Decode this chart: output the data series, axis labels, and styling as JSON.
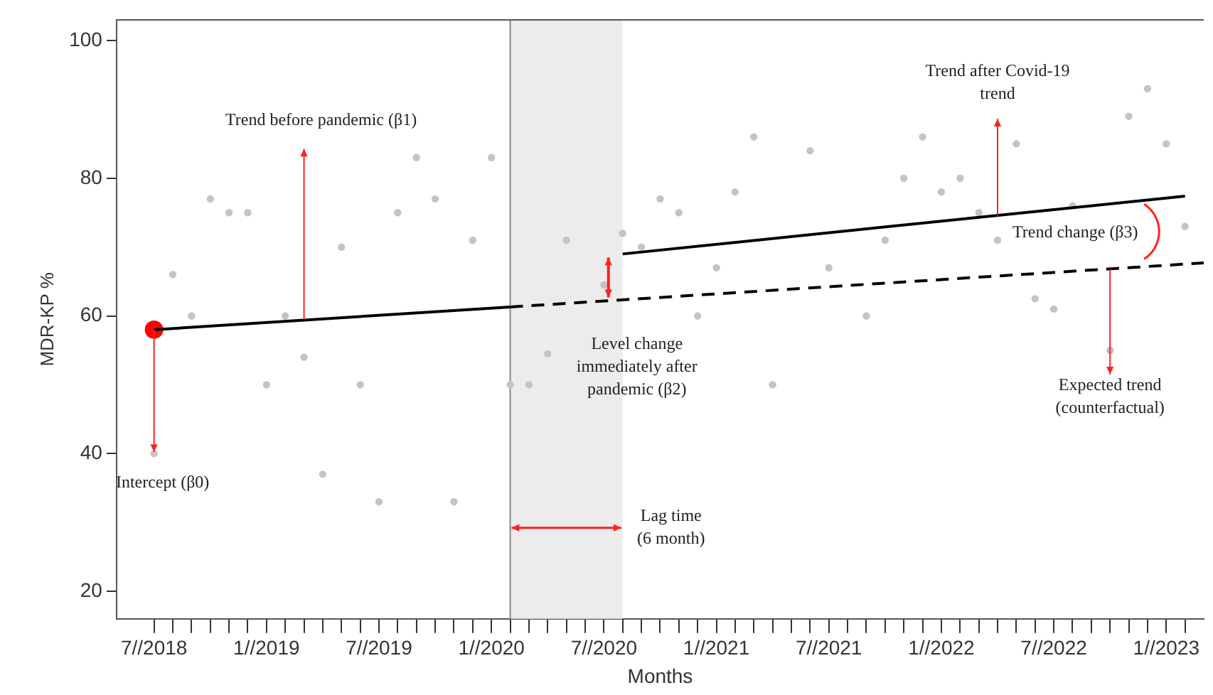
{
  "chart_data": {
    "type": "scatter",
    "xlabel": "Months",
    "ylabel": "MDR-KP %",
    "xlim": [
      "2018-05",
      "2023-03"
    ],
    "ylim": [
      16,
      103
    ],
    "yticks": [
      20,
      40,
      60,
      80,
      100
    ],
    "xticks": [
      {
        "value": "2018-07",
        "label": "7//2018"
      },
      {
        "value": "2018-08",
        "label": null
      },
      {
        "value": "2018-09",
        "label": null
      },
      {
        "value": "2018-10",
        "label": null
      },
      {
        "value": "2018-11",
        "label": null
      },
      {
        "value": "2018-12",
        "label": null
      },
      {
        "value": "2019-01",
        "label": "1//2019"
      },
      {
        "value": "2019-02",
        "label": null
      },
      {
        "value": "2019-03",
        "label": null
      },
      {
        "value": "2019-04",
        "label": null
      },
      {
        "value": "2019-05",
        "label": null
      },
      {
        "value": "2019-06",
        "label": null
      },
      {
        "value": "2019-07",
        "label": "7//2019"
      },
      {
        "value": "2019-08",
        "label": null
      },
      {
        "value": "2019-09",
        "label": null
      },
      {
        "value": "2019-10",
        "label": null
      },
      {
        "value": "2019-11",
        "label": null
      },
      {
        "value": "2019-12",
        "label": null
      },
      {
        "value": "2020-01",
        "label": "1//2020"
      },
      {
        "value": "2020-02",
        "label": null
      },
      {
        "value": "2020-03",
        "label": null
      },
      {
        "value": "2020-04",
        "label": null
      },
      {
        "value": "2020-05",
        "label": null
      },
      {
        "value": "2020-06",
        "label": null
      },
      {
        "value": "2020-07",
        "label": "7//2020"
      },
      {
        "value": "2020-08",
        "label": null
      },
      {
        "value": "2020-09",
        "label": null
      },
      {
        "value": "2020-10",
        "label": null
      },
      {
        "value": "2020-11",
        "label": null
      },
      {
        "value": "2020-12",
        "label": null
      },
      {
        "value": "2021-01",
        "label": "1//2021"
      },
      {
        "value": "2021-02",
        "label": null
      },
      {
        "value": "2021-03",
        "label": null
      },
      {
        "value": "2021-04",
        "label": null
      },
      {
        "value": "2021-05",
        "label": null
      },
      {
        "value": "2021-06",
        "label": null
      },
      {
        "value": "2021-07",
        "label": "7//2021"
      },
      {
        "value": "2021-08",
        "label": null
      },
      {
        "value": "2021-09",
        "label": null
      },
      {
        "value": "2021-10",
        "label": null
      },
      {
        "value": "2021-11",
        "label": null
      },
      {
        "value": "2021-12",
        "label": null
      },
      {
        "value": "2022-01",
        "label": "1//2022"
      },
      {
        "value": "2022-02",
        "label": null
      },
      {
        "value": "2022-03",
        "label": null
      },
      {
        "value": "2022-04",
        "label": null
      },
      {
        "value": "2022-05",
        "label": null
      },
      {
        "value": "2022-06",
        "label": null
      },
      {
        "value": "2022-07",
        "label": "7//2022"
      },
      {
        "value": "2022-08",
        "label": null
      },
      {
        "value": "2022-09",
        "label": null
      },
      {
        "value": "2022-10",
        "label": null
      },
      {
        "value": "2022-11",
        "label": null
      },
      {
        "value": "2022-12",
        "label": null
      },
      {
        "value": "2023-01",
        "label": "1//2023"
      },
      {
        "value": "2023-02",
        "label": null
      }
    ],
    "grid": false,
    "legend": false,
    "marker": "circle",
    "series": [
      {
        "color": "#c4c4c4",
        "x": [
          "2018-07",
          "2018-08",
          "2018-09",
          "2018-10",
          "2018-11",
          "2018-12",
          "2019-01",
          "2019-02",
          "2019-03",
          "2019-04",
          "2019-05",
          "2019-06",
          "2019-07",
          "2019-08",
          "2019-09",
          "2019-10",
          "2019-11",
          "2019-12",
          "2020-01",
          "2020-02",
          "2020-03",
          "2020-04",
          "2020-05",
          "2020-07",
          "2020-08",
          "2020-09",
          "2020-10",
          "2020-11",
          "2020-12",
          "2021-01",
          "2021-02",
          "2021-03",
          "2021-04",
          "2021-06",
          "2021-07",
          "2021-09",
          "2021-10",
          "2021-11",
          "2021-12",
          "2022-01",
          "2022-02",
          "2022-03",
          "2022-04",
          "2022-05",
          "2022-06",
          "2022-07",
          "2022-08",
          "2022-10",
          "2022-11",
          "2022-12",
          "2023-01",
          "2023-02"
        ],
        "values": [
          40,
          66,
          60,
          77,
          75,
          75,
          50,
          60,
          54,
          37,
          70,
          50,
          33,
          75,
          83,
          77,
          33,
          71,
          83,
          50,
          50,
          54.5,
          71,
          64.5,
          72,
          70,
          77,
          75,
          60,
          67,
          78,
          86,
          50,
          84,
          67,
          60,
          71,
          80,
          86,
          78,
          80,
          75,
          71,
          85,
          62.5,
          61,
          76,
          55,
          89,
          93,
          85,
          73
        ]
      },
      {
        "color": "#ff0000",
        "x": [
          "2018-07"
        ],
        "values": [
          58
        ]
      },
      {
        "type": "line",
        "color": "#000000",
        "line_style": "solid",
        "marker": "none",
        "x": [
          "2018-07",
          "2020-02"
        ],
        "values": [
          58,
          61.3
        ]
      },
      {
        "type": "line",
        "color": "#000000",
        "line_style": "dashed",
        "marker": "none",
        "x": [
          "2020-02",
          "2023-03"
        ],
        "values": [
          61.3,
          67.7
        ]
      },
      {
        "type": "line",
        "color": "#000000",
        "line_style": "solid",
        "marker": "none",
        "x": [
          "2020-08",
          "2023-02"
        ],
        "values": [
          69,
          77.4
        ]
      }
    ],
    "ref_lines": [
      {
        "axis": "x",
        "value": "2020-02",
        "color": "#888888"
      }
    ],
    "bands": [
      {
        "axis": "x",
        "from": "2020-02",
        "to": "2020-08",
        "label": "Lag time (6 month)",
        "color": "#ececec"
      }
    ],
    "annotations": [
      {
        "text": "Intercept (β0)",
        "x": "2018-07",
        "y": 58
      },
      {
        "text": "Trend before pandemic (β1)",
        "x": "2019-03",
        "y": 59.5
      },
      {
        "text": "Level change immediately after pandemic (β2)",
        "x": "2020-08",
        "y": 62.5
      },
      {
        "text": "Trend after Covid-19 trend",
        "x": "2022-04",
        "y": 74.6
      },
      {
        "text": "Trend change (β3)",
        "x": "2023-01",
        "y": 77
      },
      {
        "text": "Expected trend (counterfactual)",
        "x": "2022-10",
        "y": 66.8
      }
    ]
  }
}
